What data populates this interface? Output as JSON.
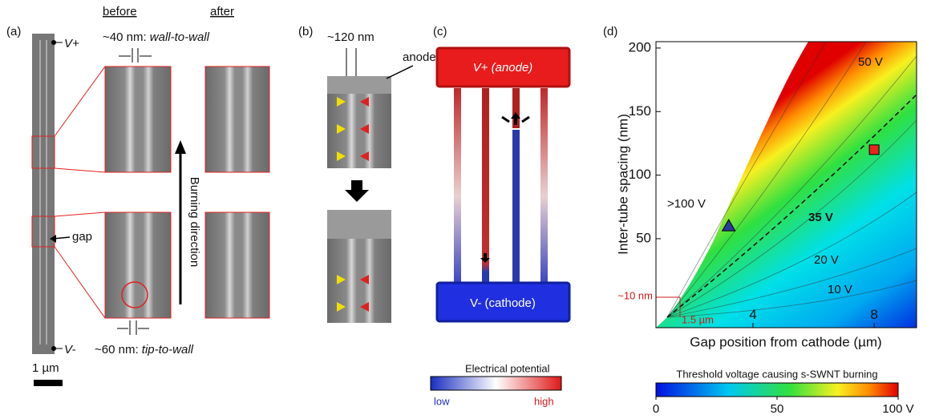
{
  "panels": {
    "a": {
      "label": "(a)",
      "before": "before",
      "after": "after",
      "v_plus": "V+",
      "v_minus": "V-",
      "wall_note": "~40 nm: ",
      "wall_note_em": "wall-to-wall",
      "tip_note": "~60 nm: ",
      "tip_note_em": "tip-to-wall",
      "gap": "gap",
      "burning": "Burning direction",
      "scale": "1 µm"
    },
    "b": {
      "label": "(b)",
      "spacing": "~120 nm",
      "anode": "anode"
    },
    "c": {
      "label": "(c)",
      "anode": "V+ (anode)",
      "cathode": "V- (cathode)",
      "colorbar_title": "Electrical potential",
      "low": "low",
      "high": "high"
    }
  },
  "chart_data": {
    "type": "contour",
    "panel_label": "(d)",
    "x_label": "Gap position from cathode (µm)",
    "y_label": "Inter-tube spacing (nm)",
    "xlim": [
      0.8,
      9.4
    ],
    "xticks": [
      4,
      8
    ],
    "ylim": [
      -20,
      205
    ],
    "yticks": [
      50,
      100,
      150,
      200
    ],
    "points": [
      {
        "x": 3.2,
        "y": 60,
        "shape": "triangle",
        "color": "#2b3a9c"
      },
      {
        "x": 8.0,
        "y": 120,
        "shape": "square",
        "color": "#e8251f"
      }
    ],
    "contour_labels": [
      ">100 V",
      "50 V",
      "35 V",
      "20 V",
      "10 V"
    ],
    "annotations": [
      "~10 nm",
      "1.5 µm"
    ],
    "colorbar": {
      "title": "Threshold voltage causing s-SWNT burning",
      "lim": [
        0,
        100
      ],
      "ticks": [
        0,
        50,
        {
          "value": 100,
          "label": "100 V"
        }
      ]
    }
  }
}
